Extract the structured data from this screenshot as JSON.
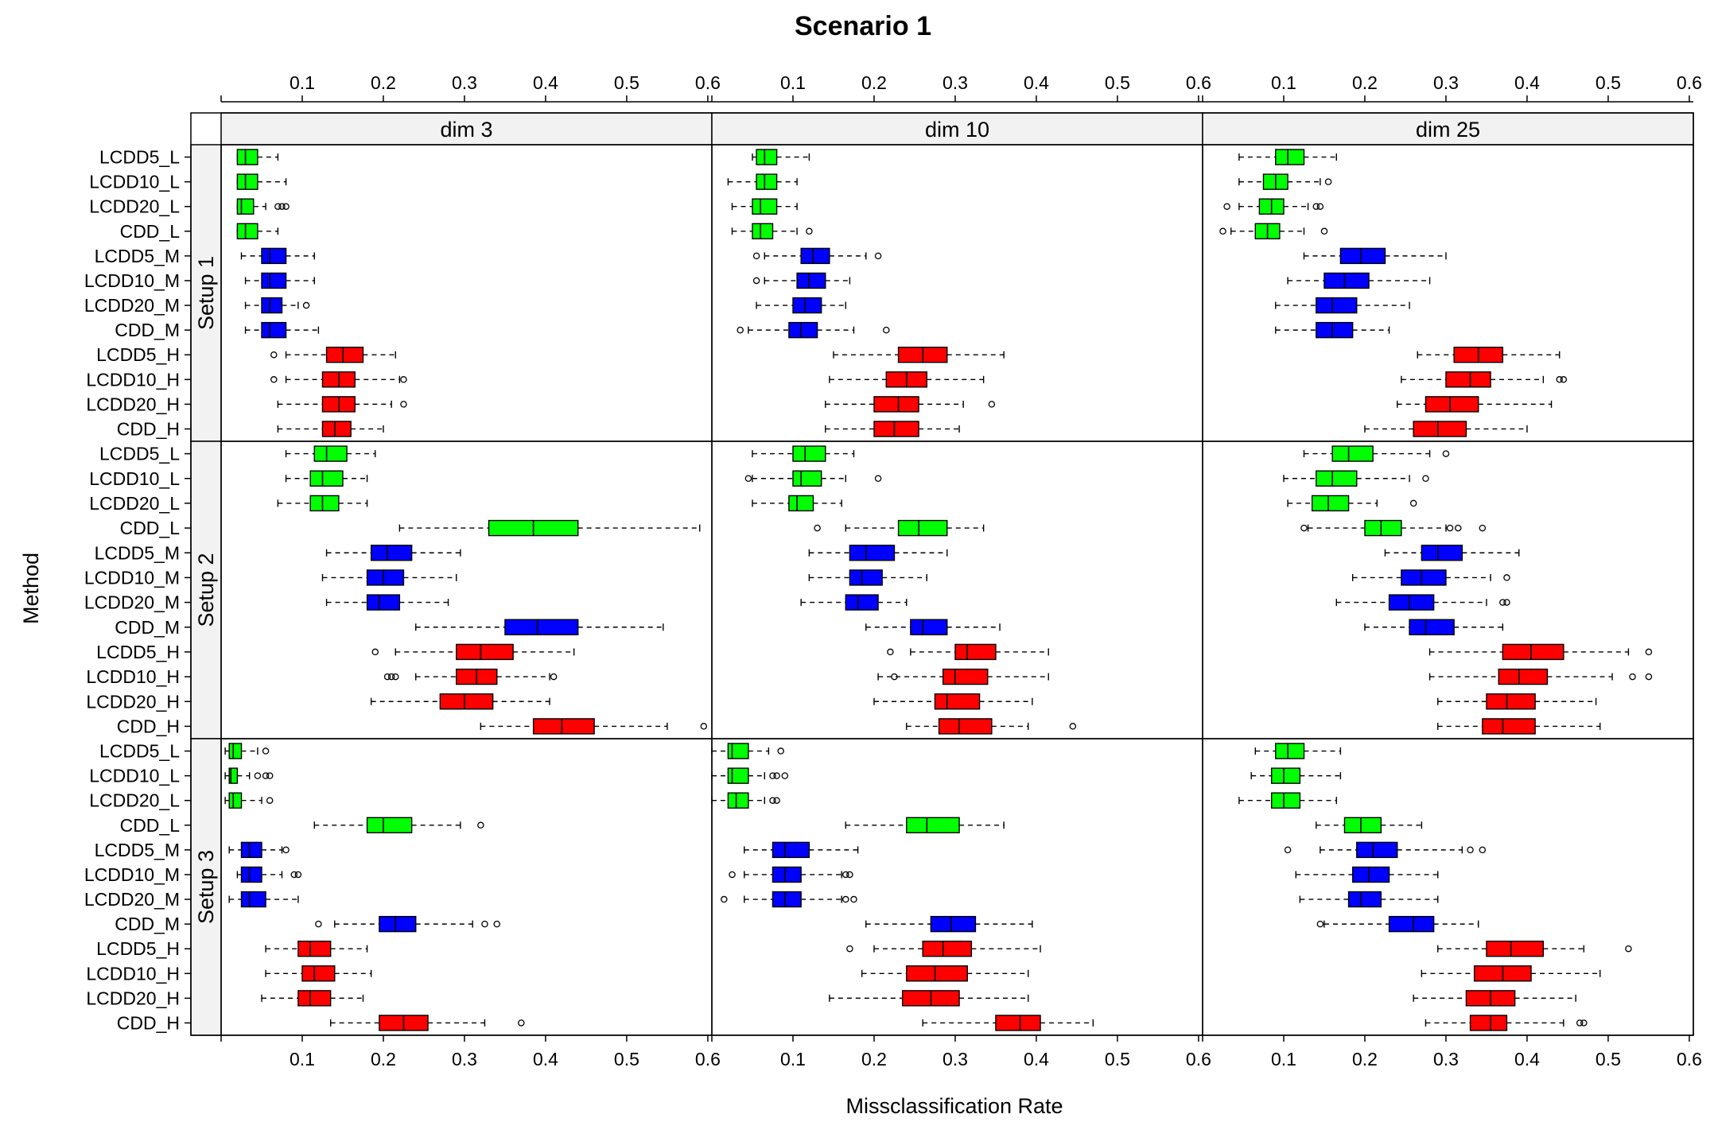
{
  "chart_data": {
    "type": "boxplot",
    "title": "Scenario 1",
    "xlabel": "Missclassification Rate",
    "ylabel": "Method",
    "xlim": [
      0.0,
      0.605
    ],
    "x_ticks": [
      "0.1",
      "0.2",
      "0.3",
      "0.4",
      "0.5",
      "0.6"
    ],
    "columns": [
      "dim 3",
      "dim 10",
      "dim 25"
    ],
    "rows": [
      "Setup 1",
      "Setup 2",
      "Setup 3"
    ],
    "categories": [
      "LCDD5_L",
      "LCDD10_L",
      "LCDD20_L",
      "CDD_L",
      "LCDD5_M",
      "LCDD10_M",
      "LCDD20_M",
      "CDD_M",
      "LCDD5_H",
      "LCDD10_H",
      "LCDD20_H",
      "CDD_H"
    ],
    "colors": {
      "L": "#00ff00",
      "M": "#0000ff",
      "H": "#ff0000"
    },
    "panels": [
      {
        "row": "Setup 1",
        "col": "dim 3",
        "boxes": [
          [
            0.02,
            0.02,
            0.03,
            0.045,
            0.07,
            []
          ],
          [
            0.02,
            0.02,
            0.03,
            0.045,
            0.08,
            []
          ],
          [
            0.02,
            0.02,
            0.025,
            0.04,
            0.055,
            [
              0.07,
              0.075,
              0.08
            ]
          ],
          [
            0.02,
            0.02,
            0.03,
            0.045,
            0.07,
            []
          ],
          [
            0.025,
            0.05,
            0.06,
            0.08,
            0.115,
            []
          ],
          [
            0.03,
            0.05,
            0.06,
            0.08,
            0.115,
            []
          ],
          [
            0.03,
            0.05,
            0.06,
            0.075,
            0.095,
            [
              0.105
            ]
          ],
          [
            0.03,
            0.05,
            0.06,
            0.08,
            0.12,
            []
          ],
          [
            0.08,
            0.13,
            0.15,
            0.175,
            0.215,
            [
              0.065
            ]
          ],
          [
            0.08,
            0.125,
            0.145,
            0.165,
            0.22,
            [
              0.065,
              0.225
            ]
          ],
          [
            0.07,
            0.125,
            0.145,
            0.165,
            0.21,
            [
              0.225
            ]
          ],
          [
            0.07,
            0.125,
            0.14,
            0.16,
            0.2,
            []
          ]
        ]
      },
      {
        "row": "Setup 1",
        "col": "dim 10",
        "boxes": [
          [
            0.05,
            0.055,
            0.065,
            0.08,
            0.12,
            []
          ],
          [
            0.02,
            0.055,
            0.065,
            0.08,
            0.105,
            []
          ],
          [
            0.025,
            0.05,
            0.06,
            0.08,
            0.105,
            []
          ],
          [
            0.025,
            0.05,
            0.06,
            0.075,
            0.105,
            [
              0.12
            ]
          ],
          [
            0.065,
            0.11,
            0.125,
            0.145,
            0.19,
            [
              0.055,
              0.205
            ]
          ],
          [
            0.065,
            0.105,
            0.12,
            0.14,
            0.17,
            [
              0.055
            ]
          ],
          [
            0.055,
            0.1,
            0.115,
            0.135,
            0.165,
            []
          ],
          [
            0.045,
            0.095,
            0.11,
            0.13,
            0.175,
            [
              0.035,
              0.215
            ]
          ],
          [
            0.15,
            0.23,
            0.26,
            0.29,
            0.36,
            []
          ],
          [
            0.145,
            0.215,
            0.24,
            0.265,
            0.335,
            []
          ],
          [
            0.14,
            0.2,
            0.23,
            0.255,
            0.31,
            [
              0.345
            ]
          ],
          [
            0.14,
            0.2,
            0.225,
            0.255,
            0.305,
            []
          ]
        ]
      },
      {
        "row": "Setup 1",
        "col": "dim 25",
        "boxes": [
          [
            0.045,
            0.09,
            0.105,
            0.125,
            0.165,
            []
          ],
          [
            0.045,
            0.075,
            0.09,
            0.105,
            0.145,
            [
              0.155
            ]
          ],
          [
            0.045,
            0.07,
            0.085,
            0.1,
            0.13,
            [
              0.03,
              0.14,
              0.145
            ]
          ],
          [
            0.035,
            0.065,
            0.08,
            0.095,
            0.125,
            [
              0.025,
              0.15
            ]
          ],
          [
            0.125,
            0.17,
            0.195,
            0.225,
            0.3,
            []
          ],
          [
            0.105,
            0.15,
            0.175,
            0.205,
            0.28,
            []
          ],
          [
            0.09,
            0.14,
            0.16,
            0.19,
            0.255,
            []
          ],
          [
            0.09,
            0.14,
            0.16,
            0.185,
            0.23,
            []
          ],
          [
            0.265,
            0.31,
            0.34,
            0.37,
            0.44,
            []
          ],
          [
            0.245,
            0.3,
            0.33,
            0.355,
            0.42,
            [
              0.44,
              0.445
            ]
          ],
          [
            0.24,
            0.275,
            0.305,
            0.34,
            0.43,
            []
          ],
          [
            0.2,
            0.26,
            0.29,
            0.325,
            0.4,
            []
          ]
        ]
      },
      {
        "row": "Setup 2",
        "col": "dim 3",
        "boxes": [
          [
            0.08,
            0.115,
            0.13,
            0.155,
            0.19,
            []
          ],
          [
            0.08,
            0.11,
            0.125,
            0.15,
            0.18,
            []
          ],
          [
            0.07,
            0.11,
            0.125,
            0.145,
            0.18,
            []
          ],
          [
            0.22,
            0.33,
            0.385,
            0.44,
            0.59,
            []
          ],
          [
            0.13,
            0.185,
            0.205,
            0.235,
            0.295,
            []
          ],
          [
            0.125,
            0.18,
            0.2,
            0.225,
            0.29,
            []
          ],
          [
            0.13,
            0.18,
            0.195,
            0.22,
            0.28,
            []
          ],
          [
            0.24,
            0.35,
            0.39,
            0.44,
            0.545,
            []
          ],
          [
            0.215,
            0.29,
            0.32,
            0.36,
            0.435,
            [
              0.19
            ]
          ],
          [
            0.24,
            0.29,
            0.315,
            0.34,
            0.405,
            [
              0.205,
              0.21,
              0.215,
              0.41
            ]
          ],
          [
            0.185,
            0.27,
            0.3,
            0.335,
            0.405,
            []
          ],
          [
            0.32,
            0.385,
            0.42,
            0.46,
            0.55,
            [
              0.595
            ]
          ]
        ]
      },
      {
        "row": "Setup 2",
        "col": "dim 10",
        "boxes": [
          [
            0.05,
            0.1,
            0.115,
            0.14,
            0.175,
            []
          ],
          [
            0.05,
            0.1,
            0.11,
            0.135,
            0.165,
            [
              0.045,
              0.205
            ]
          ],
          [
            0.05,
            0.095,
            0.105,
            0.125,
            0.16,
            []
          ],
          [
            0.165,
            0.23,
            0.255,
            0.29,
            0.335,
            [
              0.13
            ]
          ],
          [
            0.12,
            0.17,
            0.19,
            0.225,
            0.29,
            []
          ],
          [
            0.12,
            0.17,
            0.185,
            0.21,
            0.265,
            []
          ],
          [
            0.11,
            0.165,
            0.18,
            0.205,
            0.24,
            []
          ],
          [
            0.19,
            0.245,
            0.26,
            0.29,
            0.355,
            []
          ],
          [
            0.245,
            0.3,
            0.315,
            0.35,
            0.415,
            [
              0.22
            ]
          ],
          [
            0.205,
            0.285,
            0.3,
            0.34,
            0.415,
            [
              0.225
            ]
          ],
          [
            0.2,
            0.275,
            0.29,
            0.33,
            0.395,
            []
          ],
          [
            0.24,
            0.28,
            0.305,
            0.345,
            0.39,
            [
              0.445
            ]
          ]
        ]
      },
      {
        "row": "Setup 2",
        "col": "dim 25",
        "boxes": [
          [
            0.125,
            0.16,
            0.18,
            0.21,
            0.28,
            [
              0.3
            ]
          ],
          [
            0.1,
            0.14,
            0.16,
            0.19,
            0.255,
            [
              0.275
            ]
          ],
          [
            0.105,
            0.135,
            0.155,
            0.18,
            0.215,
            [
              0.26
            ]
          ],
          [
            0.13,
            0.2,
            0.22,
            0.245,
            0.3,
            [
              0.125,
              0.305,
              0.315,
              0.345
            ]
          ],
          [
            0.225,
            0.27,
            0.29,
            0.32,
            0.39,
            []
          ],
          [
            0.185,
            0.245,
            0.27,
            0.3,
            0.355,
            [
              0.375
            ]
          ],
          [
            0.165,
            0.23,
            0.255,
            0.285,
            0.35,
            [
              0.37,
              0.375
            ]
          ],
          [
            0.2,
            0.255,
            0.275,
            0.31,
            0.37,
            []
          ],
          [
            0.28,
            0.37,
            0.405,
            0.445,
            0.525,
            [
              0.55
            ]
          ],
          [
            0.28,
            0.365,
            0.39,
            0.425,
            0.505,
            [
              0.53,
              0.55
            ]
          ],
          [
            0.29,
            0.35,
            0.375,
            0.41,
            0.485,
            []
          ],
          [
            0.29,
            0.345,
            0.37,
            0.41,
            0.49,
            []
          ]
        ]
      },
      {
        "row": "Setup 3",
        "col": "dim 10",
        "boxes": [
          [
            0.0,
            0.02,
            0.025,
            0.045,
            0.07,
            [
              0.085
            ]
          ],
          [
            0.0,
            0.02,
            0.025,
            0.045,
            0.065,
            [
              0.075,
              0.08,
              0.09
            ]
          ],
          [
            0.0,
            0.02,
            0.03,
            0.045,
            0.065,
            [
              0.075,
              0.08
            ]
          ],
          [
            0.165,
            0.24,
            0.265,
            0.305,
            0.36,
            []
          ],
          [
            0.04,
            0.075,
            0.09,
            0.12,
            0.18,
            []
          ],
          [
            0.04,
            0.075,
            0.09,
            0.11,
            0.16,
            [
              0.025,
              0.165,
              0.17
            ]
          ],
          [
            0.04,
            0.075,
            0.09,
            0.11,
            0.16,
            [
              0.015,
              0.165,
              0.175
            ]
          ],
          [
            0.19,
            0.27,
            0.295,
            0.325,
            0.395,
            []
          ],
          [
            0.2,
            0.26,
            0.285,
            0.32,
            0.405,
            [
              0.17
            ]
          ],
          [
            0.185,
            0.24,
            0.275,
            0.315,
            0.39,
            []
          ],
          [
            0.145,
            0.235,
            0.27,
            0.305,
            0.39,
            []
          ],
          [
            0.26,
            0.35,
            0.38,
            0.405,
            0.47,
            []
          ]
        ]
      },
      {
        "row": "Setup 3",
        "col": "dim 3",
        "boxes": [
          [
            0.005,
            0.01,
            0.015,
            0.025,
            0.045,
            [
              0.055
            ]
          ],
          [
            0.005,
            0.01,
            0.012,
            0.02,
            0.035,
            [
              0.045,
              0.055,
              0.06
            ]
          ],
          [
            0.005,
            0.01,
            0.015,
            0.025,
            0.05,
            [
              0.06
            ]
          ],
          [
            0.115,
            0.18,
            0.2,
            0.235,
            0.295,
            [
              0.32
            ]
          ],
          [
            0.01,
            0.025,
            0.035,
            0.05,
            0.075,
            [
              0.08
            ]
          ],
          [
            0.02,
            0.025,
            0.035,
            0.05,
            0.075,
            [
              0.09,
              0.095
            ]
          ],
          [
            0.01,
            0.025,
            0.035,
            0.055,
            0.095,
            []
          ],
          [
            0.14,
            0.195,
            0.215,
            0.24,
            0.31,
            [
              0.12,
              0.325,
              0.34
            ]
          ],
          [
            0.055,
            0.095,
            0.11,
            0.135,
            0.18,
            []
          ],
          [
            0.055,
            0.1,
            0.115,
            0.14,
            0.185,
            []
          ],
          [
            0.05,
            0.095,
            0.11,
            0.135,
            0.175,
            []
          ],
          [
            0.135,
            0.195,
            0.225,
            0.255,
            0.325,
            [
              0.37
            ]
          ]
        ]
      },
      {
        "row": "Setup 3",
        "col": "dim 25",
        "boxes": [
          [
            0.065,
            0.09,
            0.105,
            0.125,
            0.17,
            []
          ],
          [
            0.06,
            0.085,
            0.1,
            0.12,
            0.17,
            []
          ],
          [
            0.045,
            0.085,
            0.1,
            0.12,
            0.165,
            []
          ],
          [
            0.14,
            0.175,
            0.195,
            0.22,
            0.27,
            []
          ],
          [
            0.145,
            0.19,
            0.21,
            0.24,
            0.32,
            [
              0.105,
              0.33,
              0.345
            ]
          ],
          [
            0.115,
            0.185,
            0.205,
            0.23,
            0.29,
            []
          ],
          [
            0.12,
            0.18,
            0.195,
            0.22,
            0.29,
            []
          ],
          [
            0.15,
            0.23,
            0.26,
            0.285,
            0.34,
            [
              0.145
            ]
          ],
          [
            0.29,
            0.35,
            0.38,
            0.42,
            0.47,
            [
              0.525
            ]
          ],
          [
            0.27,
            0.335,
            0.37,
            0.405,
            0.49,
            []
          ],
          [
            0.26,
            0.325,
            0.355,
            0.385,
            0.46,
            []
          ],
          [
            0.275,
            0.33,
            0.355,
            0.375,
            0.445,
            [
              0.465,
              0.47
            ]
          ]
        ]
      }
    ]
  }
}
